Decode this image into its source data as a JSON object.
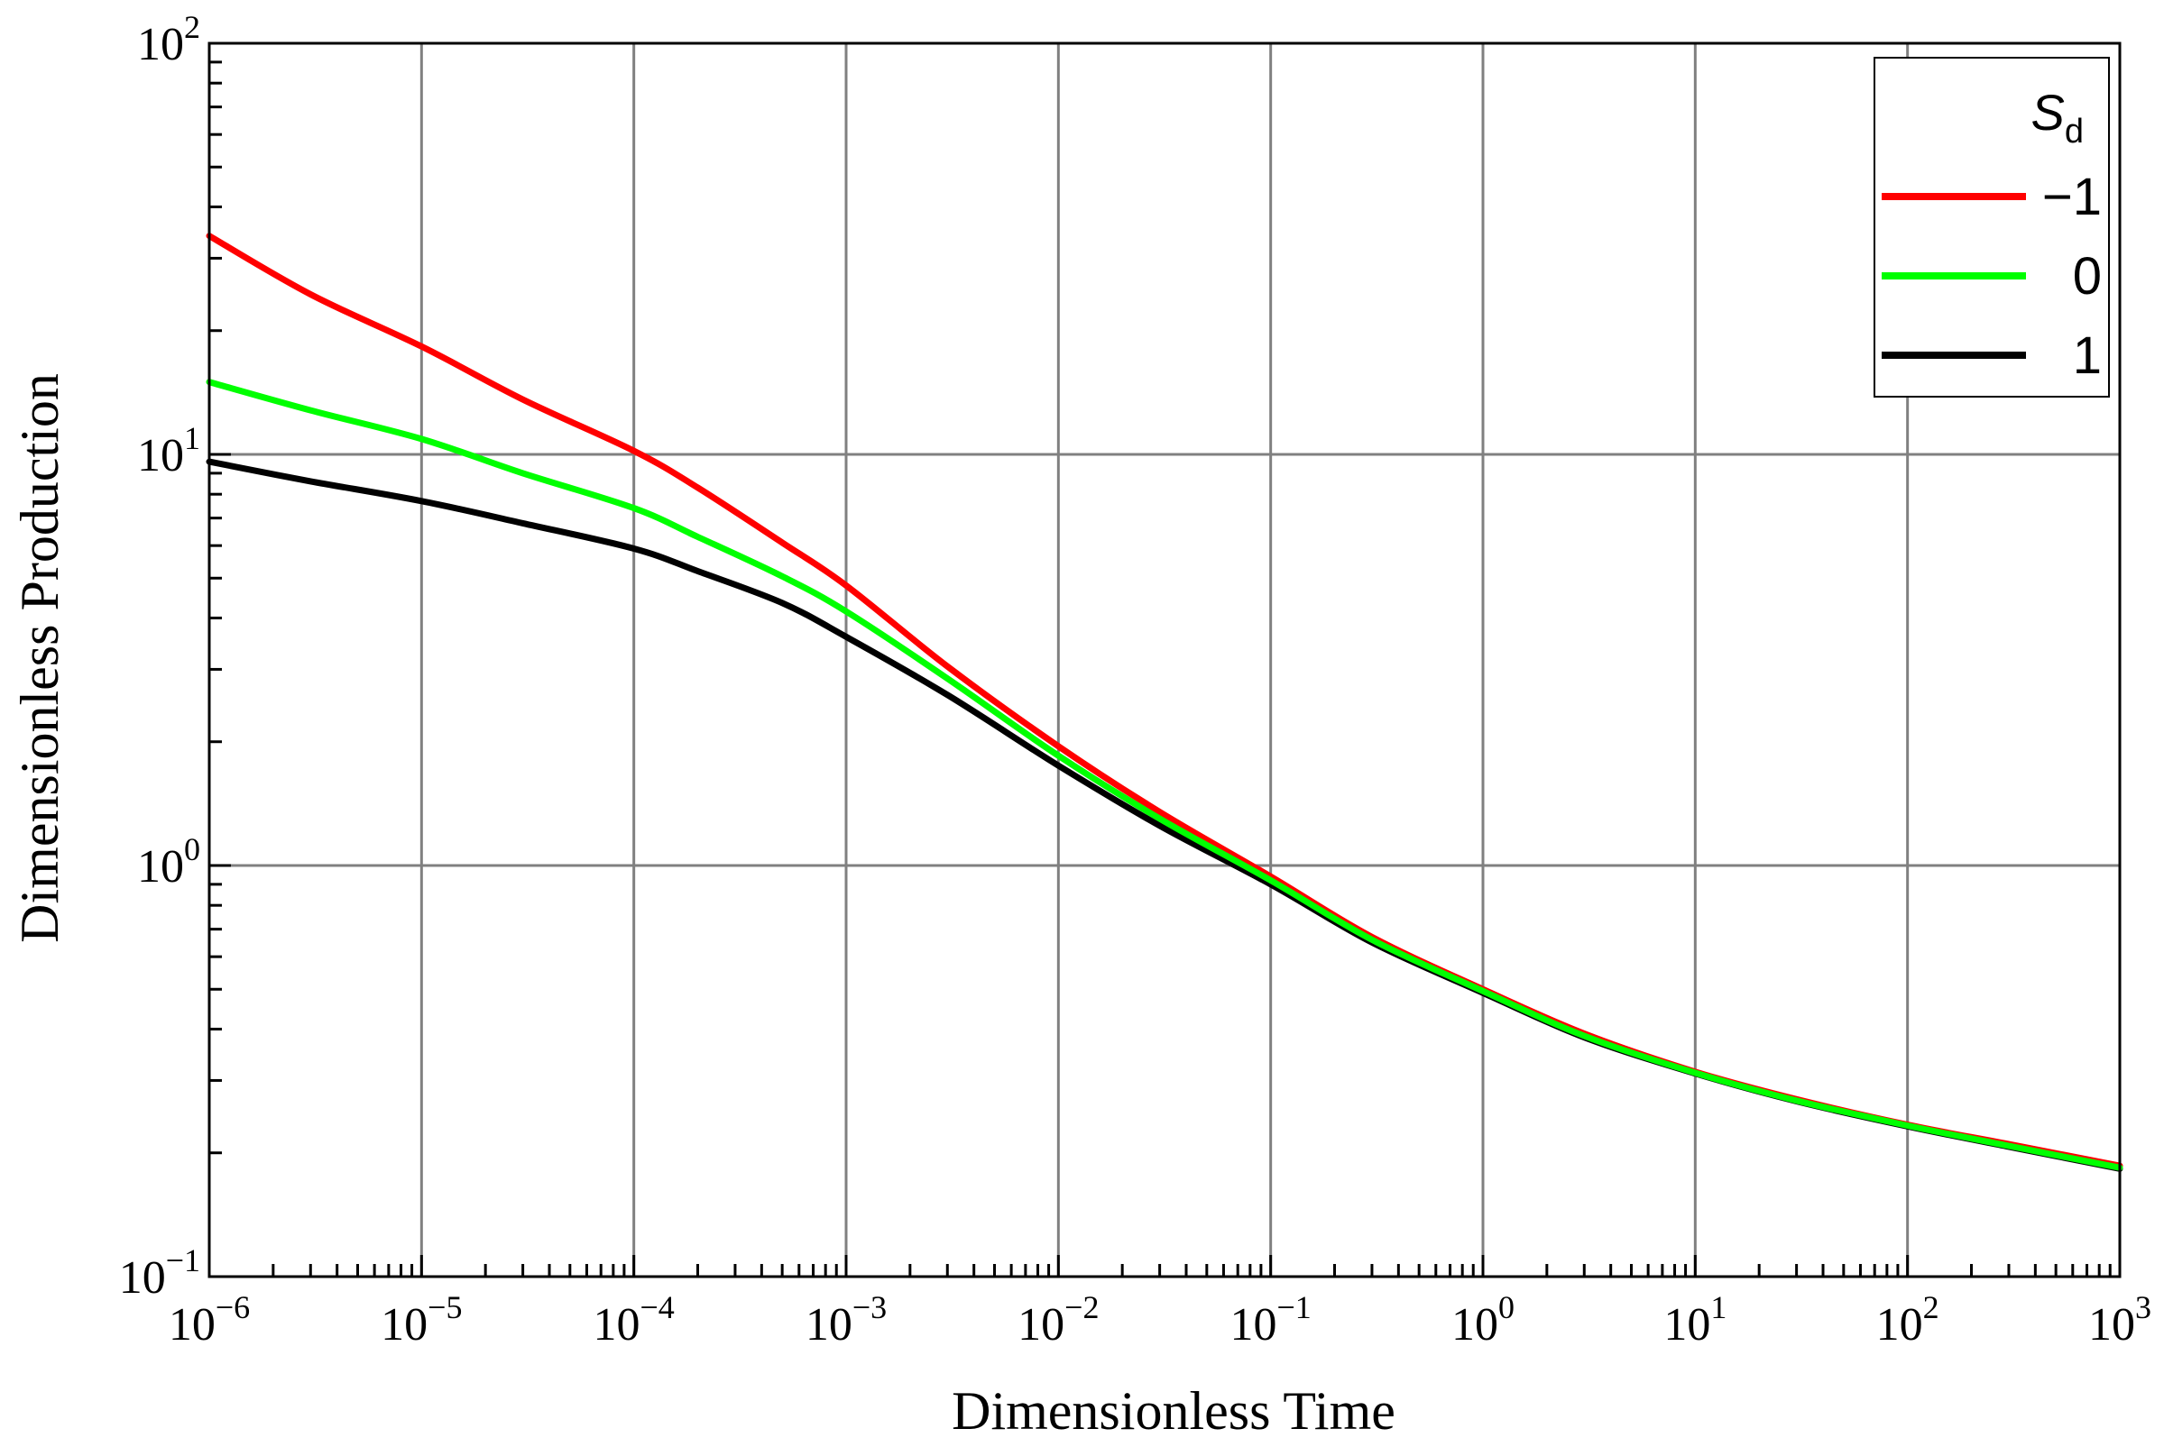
{
  "chart_data": {
    "type": "line",
    "xlabel": "Dimensionless Time",
    "ylabel": "Dimensionless Production",
    "xscale": "log",
    "yscale": "log",
    "xlim": [
      1e-06,
      1000
    ],
    "ylim": [
      0.1,
      100
    ],
    "grid": true,
    "x_ticks": [
      {
        "value": 1e-06,
        "base": "10",
        "exp": "−6"
      },
      {
        "value": 1e-05,
        "base": "10",
        "exp": "−5"
      },
      {
        "value": 0.0001,
        "base": "10",
        "exp": "−4"
      },
      {
        "value": 0.001,
        "base": "10",
        "exp": "−3"
      },
      {
        "value": 0.01,
        "base": "10",
        "exp": "−2"
      },
      {
        "value": 0.1,
        "base": "10",
        "exp": "−1"
      },
      {
        "value": 1,
        "base": "10",
        "exp": "0"
      },
      {
        "value": 10,
        "base": "10",
        "exp": "1"
      },
      {
        "value": 100,
        "base": "10",
        "exp": "2"
      },
      {
        "value": 1000,
        "base": "10",
        "exp": "3"
      }
    ],
    "y_ticks": [
      {
        "value": 0.1,
        "base": "10",
        "exp": "−1"
      },
      {
        "value": 1,
        "base": "10",
        "exp": "0"
      },
      {
        "value": 10,
        "base": "10",
        "exp": "1"
      },
      {
        "value": 100,
        "base": "10",
        "exp": "2"
      }
    ],
    "legend": {
      "title_main": "S",
      "title_sub": "d",
      "position": "top-right"
    },
    "series": [
      {
        "name": "−1",
        "color": "#ff0000",
        "x": [
          1e-06,
          3e-06,
          1e-05,
          3e-05,
          0.0001,
          0.0002,
          0.0005,
          0.001,
          0.003,
          0.01,
          0.03,
          0.1,
          0.3,
          1,
          3,
          10,
          30,
          100,
          300,
          1000
        ],
        "y": [
          34,
          24.5,
          18.3,
          13.6,
          10.2,
          8.3,
          6.1,
          4.8,
          3.05,
          1.95,
          1.35,
          0.94,
          0.67,
          0.5,
          0.39,
          0.315,
          0.27,
          0.234,
          0.21,
          0.186
        ]
      },
      {
        "name": "0",
        "color": "#00ff00",
        "x": [
          1e-06,
          3e-06,
          1e-05,
          3e-05,
          0.0001,
          0.0002,
          0.0005,
          0.001,
          0.003,
          0.01,
          0.03,
          0.1,
          0.3,
          1,
          3,
          10,
          30,
          100,
          300,
          1000
        ],
        "y": [
          15,
          12.8,
          10.9,
          9.0,
          7.4,
          6.3,
          5.05,
          4.15,
          2.85,
          1.85,
          1.3,
          0.92,
          0.66,
          0.495,
          0.385,
          0.313,
          0.268,
          0.233,
          0.208,
          0.184
        ]
      },
      {
        "name": "1",
        "color": "#000000",
        "x": [
          1e-06,
          3e-06,
          1e-05,
          3e-05,
          0.0001,
          0.0002,
          0.0005,
          0.001,
          0.003,
          0.01,
          0.03,
          0.1,
          0.3,
          1,
          3,
          10,
          30,
          100,
          300,
          1000
        ],
        "y": [
          9.6,
          8.6,
          7.7,
          6.8,
          5.9,
          5.2,
          4.35,
          3.6,
          2.6,
          1.75,
          1.25,
          0.9,
          0.65,
          0.49,
          0.382,
          0.312,
          0.267,
          0.232,
          0.207,
          0.183
        ]
      }
    ]
  }
}
